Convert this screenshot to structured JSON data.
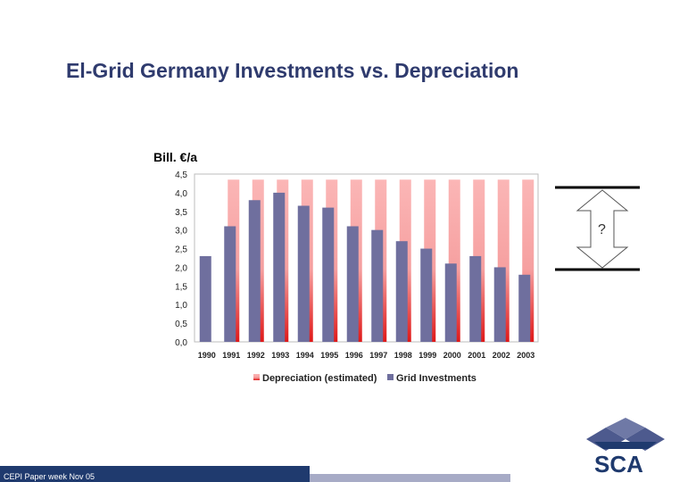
{
  "slide": {
    "title": "El-Grid Germany Investments vs. Depreciation",
    "footer": "CEPI Paper week Nov 05",
    "annotation": "?",
    "logo_text": "SCA"
  },
  "colors": {
    "depreciation": "#f7a8a8",
    "depreciation_dark": "#e02020",
    "grid": "#6f6f9e",
    "title": "#2f3b6e",
    "footer_dark": "#1f3a6e",
    "footer_light": "#a7abc6"
  },
  "chart_data": {
    "type": "bar",
    "unit_label": "Bill. €/a",
    "categories": [
      "1990",
      "1991",
      "1992",
      "1993",
      "1994",
      "1995",
      "1996",
      "1997",
      "1998",
      "1999",
      "2000",
      "2001",
      "2002",
      "2003"
    ],
    "series": [
      {
        "name": "Depreciation (estimated)",
        "values": [
          null,
          4.35,
          4.35,
          4.35,
          4.35,
          4.35,
          4.35,
          4.35,
          4.35,
          4.35,
          4.35,
          4.35,
          4.35,
          4.35
        ]
      },
      {
        "name": "Grid Investments",
        "values": [
          2.3,
          3.1,
          3.8,
          4.0,
          3.65,
          3.6,
          3.1,
          3.0,
          2.7,
          2.5,
          2.1,
          2.3,
          2.0,
          1.8
        ]
      }
    ],
    "y_ticks": [
      "0,0",
      "0,5",
      "1,0",
      "1,5",
      "2,0",
      "2,5",
      "3,0",
      "3,5",
      "4,0",
      "4,5"
    ],
    "ylim": [
      0,
      4.5
    ],
    "legend_position": "bottom",
    "grid": false
  }
}
